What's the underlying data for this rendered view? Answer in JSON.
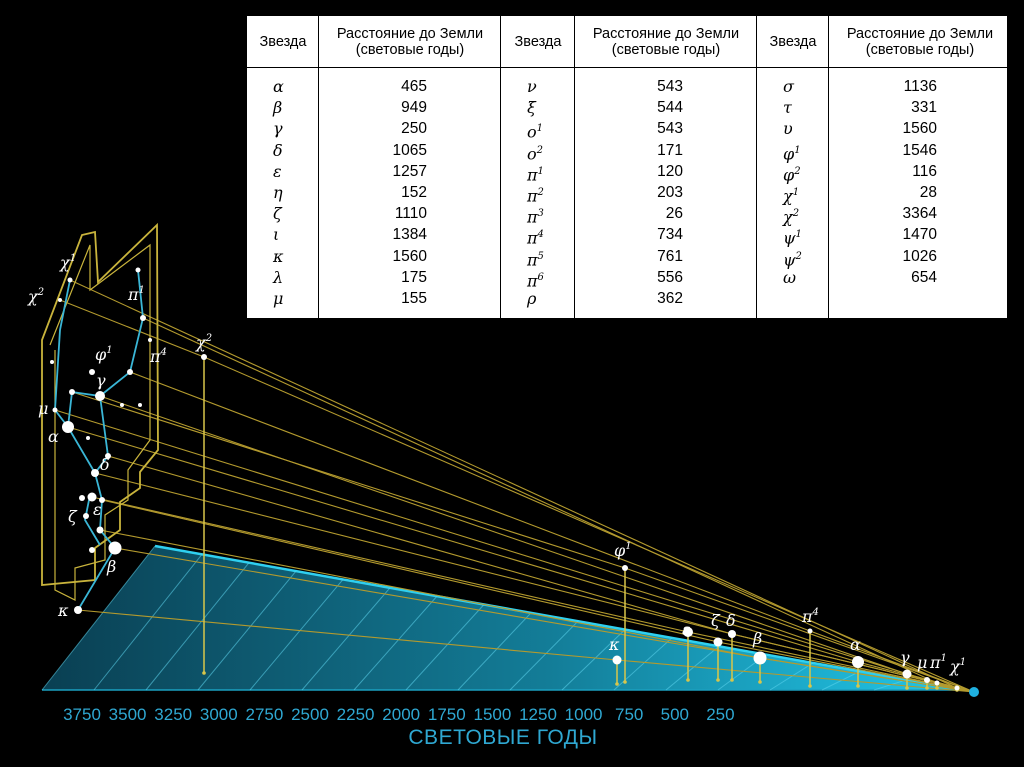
{
  "table": {
    "headers": [
      {
        "star": "Звезда",
        "distance": "Расстояние до Земли\n(световые годы)"
      },
      {
        "star": "Звезда",
        "distance": "Расстояние до Земли\n(световые годы)"
      },
      {
        "star": "Звезда",
        "distance": "Расстояние до Земли\n(световые годы)"
      }
    ],
    "groups": [
      [
        {
          "star": "α",
          "sup": "",
          "distance": "465"
        },
        {
          "star": "β",
          "sup": "",
          "distance": "949"
        },
        {
          "star": "γ",
          "sup": "",
          "distance": "250"
        },
        {
          "star": "δ",
          "sup": "",
          "distance": "1065"
        },
        {
          "star": "ε",
          "sup": "",
          "distance": "1257"
        },
        {
          "star": "η",
          "sup": "",
          "distance": "152"
        },
        {
          "star": "ζ",
          "sup": "",
          "distance": "1110"
        },
        {
          "star": "ι",
          "sup": "",
          "distance": "1384"
        },
        {
          "star": "κ",
          "sup": "",
          "distance": "1560"
        },
        {
          "star": "λ",
          "sup": "",
          "distance": "175"
        },
        {
          "star": "μ",
          "sup": "",
          "distance": "155"
        }
      ],
      [
        {
          "star": "ν",
          "sup": "",
          "distance": "543"
        },
        {
          "star": "ξ",
          "sup": "",
          "distance": "544"
        },
        {
          "star": "ο",
          "sup": "1",
          "distance": "543"
        },
        {
          "star": "ο",
          "sup": "2",
          "distance": "171"
        },
        {
          "star": "π",
          "sup": "1",
          "distance": "120"
        },
        {
          "star": "π",
          "sup": "2",
          "distance": "203"
        },
        {
          "star": "π",
          "sup": "3",
          "distance": "26"
        },
        {
          "star": "π",
          "sup": "4",
          "distance": "734"
        },
        {
          "star": "π",
          "sup": "5",
          "distance": "761"
        },
        {
          "star": "π",
          "sup": "6",
          "distance": "556"
        },
        {
          "star": "ρ",
          "sup": "",
          "distance": "362"
        }
      ],
      [
        {
          "star": "σ",
          "sup": "",
          "distance": "1136"
        },
        {
          "star": "τ",
          "sup": "",
          "distance": "331"
        },
        {
          "star": "υ",
          "sup": "",
          "distance": "1560"
        },
        {
          "star": "φ",
          "sup": "1",
          "distance": "1546"
        },
        {
          "star": "φ",
          "sup": "2",
          "distance": "116"
        },
        {
          "star": "χ",
          "sup": "1",
          "distance": "28"
        },
        {
          "star": "χ",
          "sup": "2",
          "distance": "3364"
        },
        {
          "star": "ψ",
          "sup": "1",
          "distance": "1470"
        },
        {
          "star": "ψ",
          "sup": "2",
          "distance": "1026"
        },
        {
          "star": "ω",
          "sup": "",
          "distance": "654"
        }
      ]
    ]
  },
  "axis": {
    "label": "СВЕТОВЫЕ ГОДЫ",
    "ticks": [
      "3750",
      "3500",
      "3250",
      "3000",
      "2750",
      "2500",
      "2250",
      "2000",
      "1750",
      "1500",
      "1250",
      "1000",
      "750",
      "500",
      "250"
    ]
  },
  "constellation_labels": [
    {
      "id": "chi1",
      "text": "χ",
      "sup": "1"
    },
    {
      "id": "chi2",
      "text": "χ",
      "sup": "2"
    },
    {
      "id": "pi1",
      "text": "π",
      "sup": "1"
    },
    {
      "id": "phi1",
      "text": "φ",
      "sup": "1"
    },
    {
      "id": "pi4",
      "text": "π",
      "sup": "4"
    },
    {
      "id": "gamma",
      "text": "γ",
      "sup": ""
    },
    {
      "id": "mu",
      "text": "μ",
      "sup": ""
    },
    {
      "id": "alpha",
      "text": "α",
      "sup": ""
    },
    {
      "id": "delta",
      "text": "δ",
      "sup": ""
    },
    {
      "id": "zeta",
      "text": "ζ",
      "sup": ""
    },
    {
      "id": "epsilon",
      "text": "ε",
      "sup": ""
    },
    {
      "id": "beta",
      "text": "β",
      "sup": ""
    },
    {
      "id": "kappa",
      "text": "κ",
      "sup": ""
    }
  ],
  "depth_labels": [
    {
      "id": "chi2",
      "text": "χ",
      "sup": "2"
    },
    {
      "id": "phi1",
      "text": "φ",
      "sup": "1"
    },
    {
      "id": "kappa",
      "text": "κ",
      "sup": ""
    },
    {
      "id": "epsilon",
      "text": "ε",
      "sup": ""
    },
    {
      "id": "zeta",
      "text": "ζ",
      "sup": ""
    },
    {
      "id": "delta",
      "text": "δ",
      "sup": ""
    },
    {
      "id": "beta",
      "text": "β",
      "sup": ""
    },
    {
      "id": "pi4",
      "text": "π",
      "sup": "4"
    },
    {
      "id": "alpha",
      "text": "α",
      "sup": ""
    },
    {
      "id": "gamma",
      "text": "γ",
      "sup": ""
    },
    {
      "id": "mu",
      "text": "μ",
      "sup": ""
    },
    {
      "id": "pi1",
      "text": "π",
      "sup": "1"
    },
    {
      "id": "chi1",
      "text": "χ",
      "sup": "1"
    }
  ],
  "colors": {
    "background": "#000000",
    "frame": "#c9b43c",
    "sight_lines": "#b39a2e",
    "constellation_lines": "#3ab6d6",
    "floor_dark": "#0b4a5c",
    "floor_light": "#17b6d8",
    "axis_text": "#2fa8d2",
    "earth": "#1fb0e0",
    "table_bg": "#ffffff"
  }
}
